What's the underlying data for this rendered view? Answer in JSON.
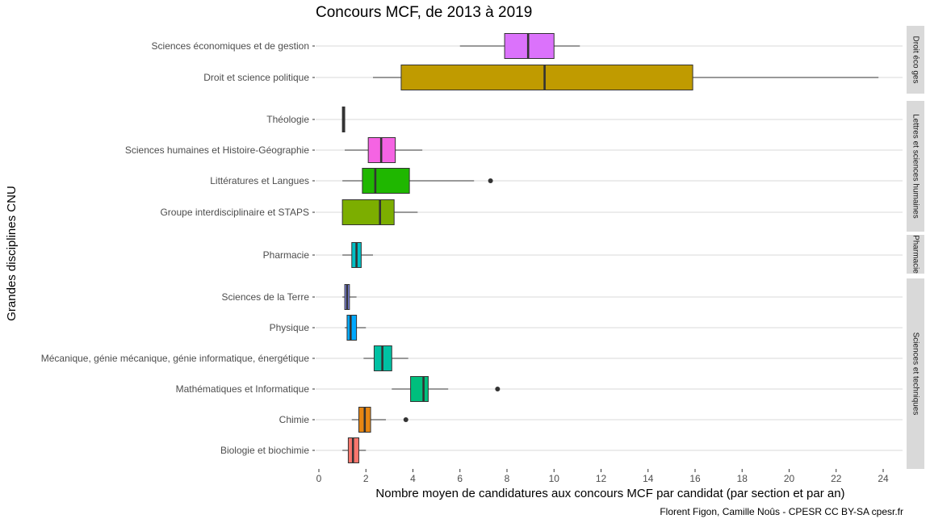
{
  "chart_data": {
    "type": "boxplot",
    "orientation": "horizontal",
    "title": "Concours MCF, de 2013 à 2019",
    "xlabel": "Nombre moyen de candidatures aux concours MCF par candidat (par section et par an)",
    "ylabel": "Grandes disciplines CNU",
    "caption": "Florent Figon, Camille Noûs - CPESR CC BY-SA cpesr.fr",
    "xlim": [
      0,
      24.9
    ],
    "xticks": [
      0,
      2,
      4,
      6,
      8,
      10,
      12,
      14,
      16,
      18,
      20,
      22,
      24
    ],
    "grid": true,
    "facets": [
      {
        "label": "Droit éco ges",
        "rows": [
          {
            "name": "Sciences économiques et de gestion",
            "min": 6.0,
            "q1": 7.9,
            "median": 8.9,
            "q3": 10.0,
            "max": 11.1,
            "outliers": [],
            "color": "#DB72FB"
          },
          {
            "name": "Droit et science politique",
            "min": 2.3,
            "q1": 3.5,
            "median": 9.6,
            "q3": 15.9,
            "max": 23.8,
            "outliers": [],
            "color": "#C09B00"
          }
        ]
      },
      {
        "label": "Lettres et sciences humaines",
        "rows": [
          {
            "name": "Théologie",
            "min": 1.0,
            "q1": 1.0,
            "median": 1.05,
            "q3": 1.1,
            "max": 1.1,
            "outliers": [],
            "color": "#FF62BC"
          },
          {
            "name": "Sciences humaines et Histoire-Géographie",
            "min": 1.1,
            "q1": 2.1,
            "median": 2.65,
            "q3": 3.25,
            "max": 4.4,
            "outliers": [],
            "color": "#F564E3"
          },
          {
            "name": "Littératures et Langues",
            "min": 1.0,
            "q1": 1.85,
            "median": 2.4,
            "q3": 3.85,
            "max": 6.6,
            "outliers": [
              7.3
            ],
            "color": "#1FB700"
          },
          {
            "name": "Groupe interdisciplinaire et STAPS",
            "min": 1.0,
            "q1": 1.0,
            "median": 2.6,
            "q3": 3.2,
            "max": 4.2,
            "outliers": [],
            "color": "#7CAE00"
          }
        ]
      },
      {
        "label": "Pharmacie",
        "rows": [
          {
            "name": "Pharmacie",
            "min": 1.0,
            "q1": 1.4,
            "median": 1.6,
            "q3": 1.8,
            "max": 2.3,
            "outliers": [],
            "color": "#00BFC4"
          }
        ]
      },
      {
        "label": "Sciences et techniques",
        "rows": [
          {
            "name": "Sciences de la Terre",
            "min": 1.0,
            "q1": 1.1,
            "median": 1.2,
            "q3": 1.3,
            "max": 1.6,
            "outliers": [],
            "color": "#8B93FF"
          },
          {
            "name": "Physique",
            "min": 1.1,
            "q1": 1.2,
            "median": 1.35,
            "q3": 1.6,
            "max": 2.0,
            "outliers": [],
            "color": "#00A9FF"
          },
          {
            "name": "Mécanique, génie mécanique, génie informatique, énergétique",
            "min": 1.9,
            "q1": 2.35,
            "median": 2.7,
            "q3": 3.1,
            "max": 3.8,
            "outliers": [],
            "color": "#00C1A3"
          },
          {
            "name": "Mathématiques et Informatique",
            "min": 3.1,
            "q1": 3.9,
            "median": 4.45,
            "q3": 4.65,
            "max": 5.5,
            "outliers": [
              7.6
            ],
            "color": "#00BF7D"
          },
          {
            "name": "Chimie",
            "min": 1.4,
            "q1": 1.7,
            "median": 1.95,
            "q3": 2.2,
            "max": 2.85,
            "outliers": [
              3.7
            ],
            "color": "#E68613"
          },
          {
            "name": "Biologie et biochimie",
            "min": 1.0,
            "q1": 1.25,
            "median": 1.45,
            "q3": 1.7,
            "max": 2.0,
            "outliers": [],
            "color": "#F8766D"
          }
        ]
      }
    ]
  }
}
